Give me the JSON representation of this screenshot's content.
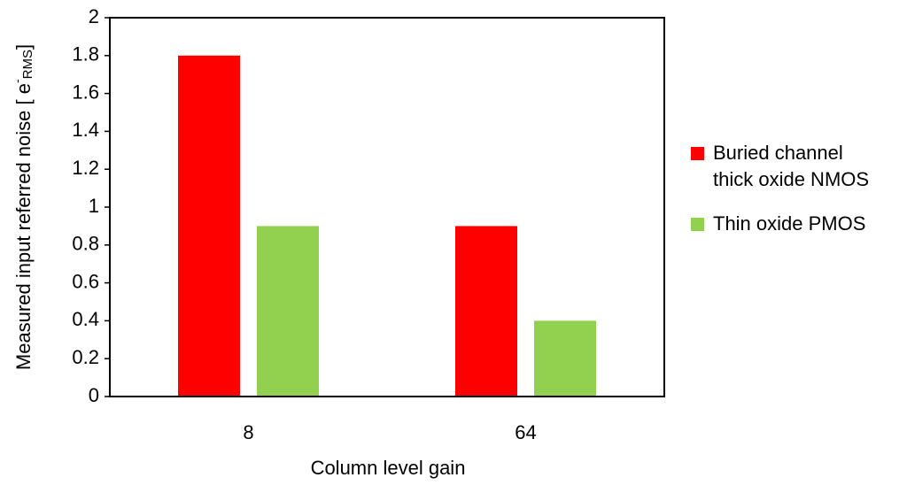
{
  "chart_data": {
    "type": "bar",
    "xlabel": "Column level gain",
    "ylabel": [
      "Measured input referred noise [ e",
      "-",
      "RMS",
      "]"
    ],
    "categories": [
      "8",
      "64"
    ],
    "series": [
      {
        "name": "Buried channel\nthick oxide NMOS",
        "color": "#ff0000",
        "values": [
          1.8,
          0.9
        ]
      },
      {
        "name": "Thin oxide PMOS",
        "color": "#92d050",
        "values": [
          0.9,
          0.4
        ]
      }
    ],
    "ylim": [
      0,
      2
    ],
    "yticks": [
      0,
      0.2,
      0.4,
      0.6,
      0.8,
      1,
      1.2,
      1.4,
      1.6,
      1.8,
      2
    ],
    "legend": "right"
  }
}
